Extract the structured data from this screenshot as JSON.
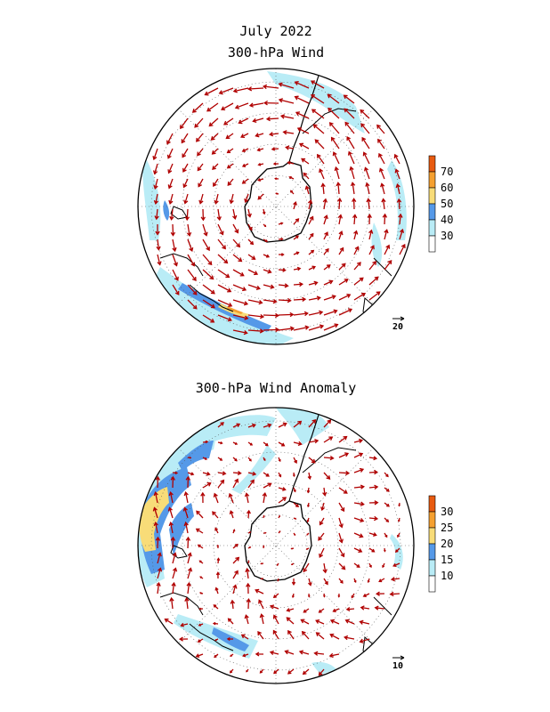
{
  "header": {
    "date": "July 2022",
    "top_title": "300-hPa Wind",
    "bottom_title": "300-hPa Wind Anomaly"
  },
  "maps": [
    {
      "id": "wind",
      "projection": "south-polar-stereographic",
      "legend": {
        "ticks": [
          "30",
          "40",
          "50",
          "60",
          "70"
        ],
        "colors": [
          "#ffffff",
          "#b9ecf6",
          "#5599e8",
          "#f8dc78",
          "#f5a030",
          "#e85a10"
        ]
      },
      "reference_vector": "20",
      "vector_color": "#b00000",
      "gridlines": true
    },
    {
      "id": "anomaly",
      "projection": "south-polar-stereographic",
      "legend": {
        "ticks": [
          "10",
          "15",
          "20",
          "25",
          "30"
        ],
        "colors": [
          "#ffffff",
          "#b9ecf6",
          "#5599e8",
          "#f8dc78",
          "#f5a030",
          "#e85a10"
        ]
      },
      "reference_vector": "10",
      "vector_color": "#b00000",
      "gridlines": true
    }
  ]
}
